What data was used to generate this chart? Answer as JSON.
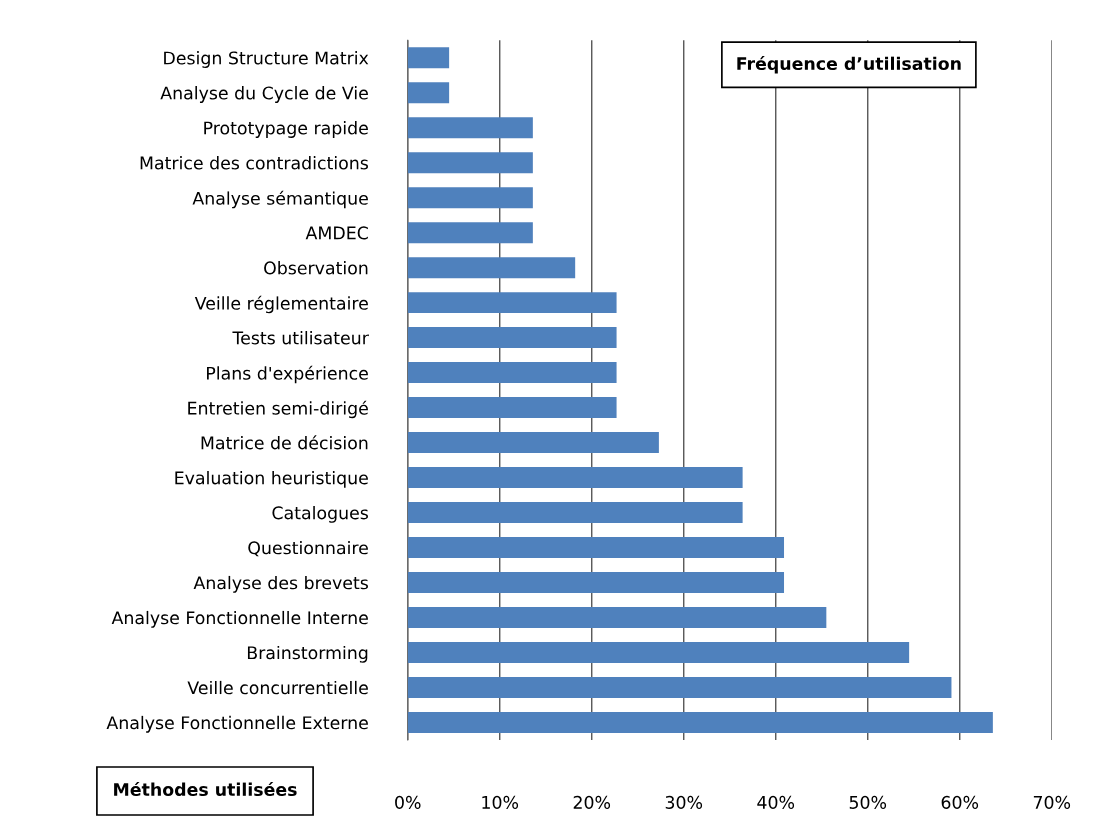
{
  "chart_data": {
    "type": "bar",
    "orientation": "horizontal",
    "title": "Fréquence d’utilisation",
    "ylabel": "Méthodes utilisées",
    "categories": [
      "Design Structure Matrix",
      "Analyse du Cycle de Vie",
      "Prototypage rapide",
      "Matrice des contradictions",
      "Analyse sémantique",
      "AMDEC",
      "Observation",
      "Veille réglementaire",
      "Tests utilisateur",
      "Plans d'expérience",
      "Entretien semi-dirigé",
      "Matrice de décision",
      "Evaluation heuristique",
      "Catalogues",
      "Questionnaire",
      "Analyse des brevets",
      "Analyse Fonctionnelle Interne",
      "Brainstorming",
      "Veille concurrentielle",
      "Analyse Fonctionnelle Externe"
    ],
    "values": [
      4.5,
      4.5,
      13.6,
      13.6,
      13.6,
      13.6,
      18.2,
      22.7,
      22.7,
      22.7,
      22.7,
      27.3,
      36.4,
      36.4,
      40.9,
      40.9,
      45.5,
      54.5,
      59.1,
      63.6
    ],
    "color": "#4f81bd",
    "xlim": [
      0,
      70
    ],
    "xticks": [
      {
        "value": 0,
        "label": "0%"
      },
      {
        "value": 10,
        "label": "10%"
      },
      {
        "value": 20,
        "label": "20%"
      },
      {
        "value": 30,
        "label": "30%"
      },
      {
        "value": 40,
        "label": "40%"
      },
      {
        "value": 50,
        "label": "50%"
      },
      {
        "value": 60,
        "label": "60%"
      },
      {
        "value": 70,
        "label": "70%"
      }
    ],
    "grid": "x"
  }
}
